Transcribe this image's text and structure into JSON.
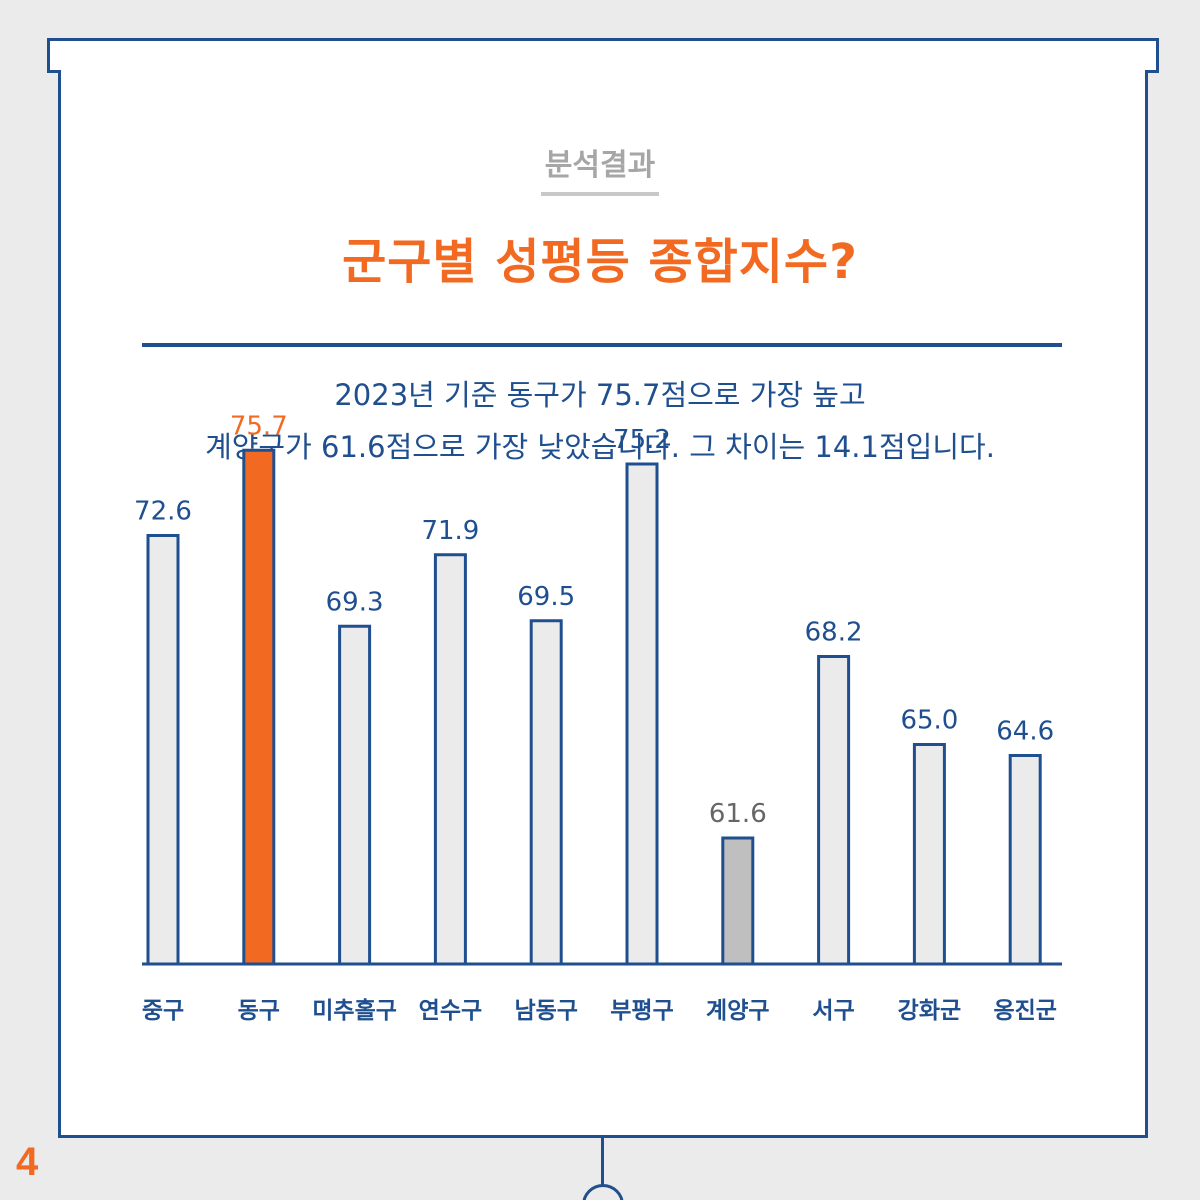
{
  "page": {
    "number": "4"
  },
  "header": {
    "kicker": "분석결과",
    "title": "군구별 성평등 종합지수?"
  },
  "summary": {
    "line1": "2023년 기준 동구가 75.7점으로 가장 높고",
    "line2": "계양구가 61.6점으로 가장 낮았습니다. 그 차이는 14.1점입니다."
  },
  "colors": {
    "accent": "#f26a21",
    "navy": "#1f4f8f",
    "bar_default": "#ebebeb",
    "bar_lowest": "#bfbfbf",
    "label_lowest": "#666666"
  },
  "chart_data": {
    "type": "bar",
    "categories": [
      "중구",
      "동구",
      "미추홀구",
      "연수구",
      "남동구",
      "부평구",
      "계양구",
      "서구",
      "강화군",
      "옹진군"
    ],
    "values": [
      72.6,
      75.7,
      69.3,
      71.9,
      69.5,
      75.2,
      61.6,
      68.2,
      65.0,
      64.6
    ],
    "value_labels": [
      "72.6",
      "75.7",
      "69.3",
      "71.9",
      "69.5",
      "75.2",
      "61.6",
      "68.2",
      "65.0",
      "64.6"
    ],
    "highlight_max": "동구",
    "highlight_min": "계양구",
    "grid": false,
    "legend": "none"
  }
}
